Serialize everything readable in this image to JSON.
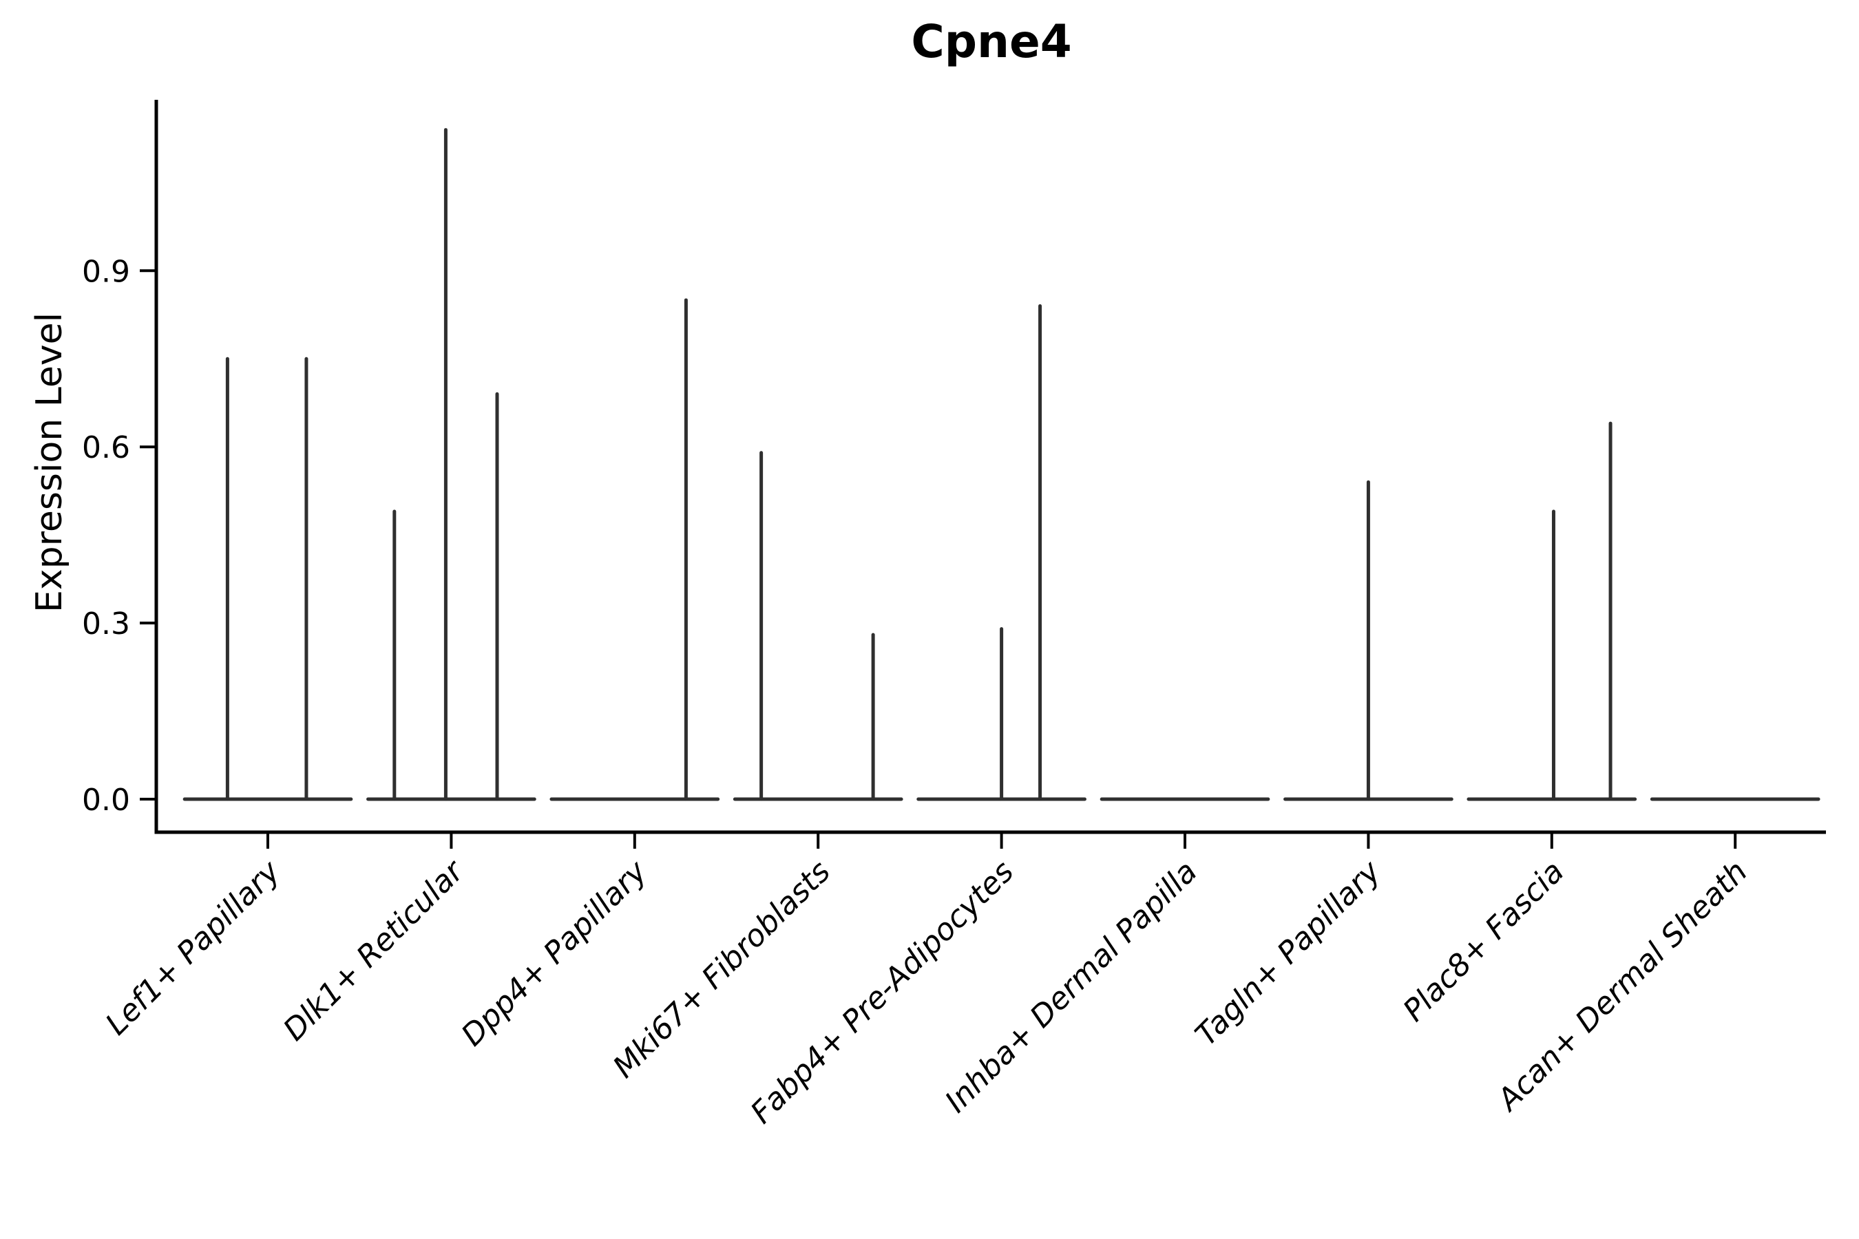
{
  "chart_data": {
    "type": "violin",
    "title": "Cpne4",
    "ylabel": "Expression Level",
    "xlabel": "",
    "ylim": [
      -0.06,
      1.19
    ],
    "yticks": [
      0.0,
      0.3,
      0.6,
      0.9
    ],
    "ytick_labels": [
      "0.0",
      "0.3",
      "0.6",
      "0.9"
    ],
    "grid": false,
    "legend": "none",
    "categories": [
      "Lef1+ Papillary",
      "Dlk1+ Reticular",
      "Dpp4+ Papillary",
      "Mki67+ Fibroblasts",
      "Fabp4+ Pre-Adipocytes",
      "Inhba+ Dermal Papilla",
      "Tagln+ Papillary",
      "Plac8+ Fascia",
      "Acan+ Dermal Sheath"
    ],
    "series": [
      {
        "category": "Lef1+ Papillary",
        "baseline_value": 0.0,
        "spikes": [
          {
            "offset": -0.22,
            "max": 0.75
          },
          {
            "offset": 0.21,
            "max": 0.75
          }
        ]
      },
      {
        "category": "Dlk1+ Reticular",
        "baseline_value": 0.0,
        "spikes": [
          {
            "offset": -0.31,
            "max": 0.49
          },
          {
            "offset": -0.03,
            "max": 1.14
          },
          {
            "offset": 0.25,
            "max": 0.69
          }
        ]
      },
      {
        "category": "Dpp4+ Papillary",
        "baseline_value": 0.0,
        "spikes": [
          {
            "offset": 0.28,
            "max": 0.85
          }
        ]
      },
      {
        "category": "Mki67+ Fibroblasts",
        "baseline_value": 0.0,
        "spikes": [
          {
            "offset": -0.31,
            "max": 0.59
          },
          {
            "offset": 0.3,
            "max": 0.28
          }
        ]
      },
      {
        "category": "Fabp4+ Pre-Adipocytes",
        "baseline_value": 0.0,
        "spikes": [
          {
            "offset": 0.0,
            "max": 0.29
          },
          {
            "offset": 0.21,
            "max": 0.84
          }
        ]
      },
      {
        "category": "Inhba+ Dermal Papilla",
        "baseline_value": 0.0,
        "spikes": []
      },
      {
        "category": "Tagln+ Papillary",
        "baseline_value": 0.0,
        "spikes": [
          {
            "offset": 0.0,
            "max": 0.54
          }
        ]
      },
      {
        "category": "Plac8+ Fascia",
        "baseline_value": 0.0,
        "spikes": [
          {
            "offset": 0.01,
            "max": 0.49
          },
          {
            "offset": 0.32,
            "max": 0.64
          }
        ]
      },
      {
        "category": "Acan+ Dermal Sheath",
        "baseline_value": 0.0,
        "spikes": []
      }
    ],
    "violin_span": 0.91,
    "colors": {
      "violin_line": "#2f2f2f",
      "axis": "#000000",
      "text": "#000000",
      "background": "#ffffff"
    }
  }
}
